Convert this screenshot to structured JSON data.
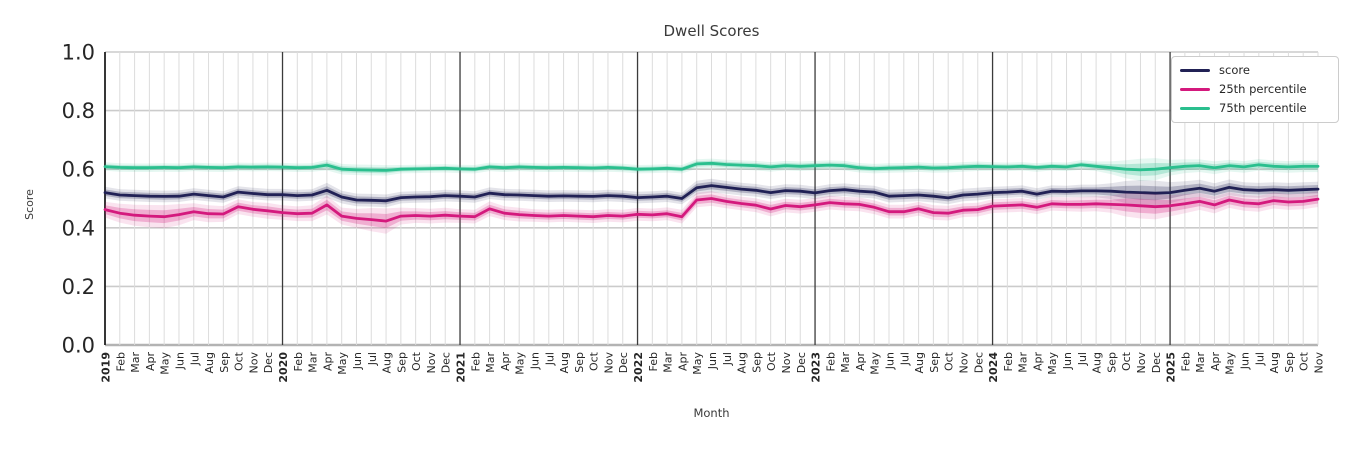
{
  "title": "Dwell Scores",
  "chart_data": {
    "type": "line",
    "title": "Dwell Scores",
    "xlabel": "Month",
    "ylabel": "Score",
    "ylim": [
      0.0,
      1.0
    ],
    "yticks": [
      0.0,
      0.2,
      0.4,
      0.6,
      0.8,
      1.0
    ],
    "grid": true,
    "legend_position": "upper right",
    "year_start_indices": [
      0,
      12,
      24,
      36,
      48,
      60,
      72
    ],
    "x": [
      "2019",
      "Feb",
      "Mar",
      "Apr",
      "May",
      "Jun",
      "Jul",
      "Aug",
      "Sep",
      "Oct",
      "Nov",
      "Dec",
      "2020",
      "Feb",
      "Mar",
      "Apr",
      "May",
      "Jun",
      "Jul",
      "Aug",
      "Sep",
      "Oct",
      "Nov",
      "Dec",
      "2021",
      "Feb",
      "Mar",
      "Apr",
      "May",
      "Jun",
      "Jul",
      "Aug",
      "Sep",
      "Oct",
      "Nov",
      "Dec",
      "2022",
      "Feb",
      "Mar",
      "Apr",
      "May",
      "Jun",
      "Jul",
      "Aug",
      "Sep",
      "Oct",
      "Nov",
      "Dec",
      "2023",
      "Feb",
      "Mar",
      "Apr",
      "May",
      "Jun",
      "Jul",
      "Aug",
      "Sep",
      "Oct",
      "Nov",
      "Dec",
      "2024",
      "Feb",
      "Mar",
      "Apr",
      "May",
      "Jun",
      "Jul",
      "Aug",
      "Sep",
      "Oct",
      "Nov",
      "Dec",
      "2025",
      "Feb",
      "Mar",
      "Apr",
      "May",
      "Jun",
      "Jul",
      "Aug",
      "Sep",
      "Oct",
      "Nov"
    ],
    "series": [
      {
        "name": "score",
        "color": "#212155",
        "values": [
          0.52,
          0.512,
          0.51,
          0.508,
          0.507,
          0.508,
          0.515,
          0.51,
          0.505,
          0.522,
          0.517,
          0.513,
          0.513,
          0.51,
          0.512,
          0.528,
          0.505,
          0.495,
          0.494,
          0.492,
          0.503,
          0.505,
          0.506,
          0.51,
          0.508,
          0.505,
          0.518,
          0.513,
          0.512,
          0.51,
          0.508,
          0.509,
          0.508,
          0.507,
          0.51,
          0.508,
          0.503,
          0.505,
          0.508,
          0.5,
          0.537,
          0.544,
          0.538,
          0.532,
          0.528,
          0.52,
          0.527,
          0.525,
          0.519,
          0.527,
          0.53,
          0.525,
          0.522,
          0.508,
          0.51,
          0.512,
          0.508,
          0.502,
          0.512,
          0.515,
          0.52,
          0.522,
          0.525,
          0.515,
          0.525,
          0.524,
          0.526,
          0.526,
          0.525,
          0.522,
          0.52,
          0.518,
          0.52,
          0.528,
          0.535,
          0.525,
          0.538,
          0.53,
          0.528,
          0.53,
          0.528,
          0.53,
          0.532
        ],
        "band": [
          0.011,
          0.011,
          0.011,
          0.011,
          0.011,
          0.011,
          0.011,
          0.011,
          0.011,
          0.011,
          0.011,
          0.011,
          0.011,
          0.011,
          0.011,
          0.014,
          0.012,
          0.012,
          0.012,
          0.012,
          0.011,
          0.011,
          0.011,
          0.011,
          0.011,
          0.011,
          0.011,
          0.011,
          0.011,
          0.011,
          0.011,
          0.011,
          0.011,
          0.011,
          0.011,
          0.011,
          0.011,
          0.011,
          0.011,
          0.011,
          0.013,
          0.013,
          0.012,
          0.012,
          0.012,
          0.012,
          0.012,
          0.012,
          0.012,
          0.012,
          0.012,
          0.012,
          0.012,
          0.012,
          0.012,
          0.012,
          0.012,
          0.012,
          0.012,
          0.012,
          0.011,
          0.011,
          0.011,
          0.011,
          0.011,
          0.011,
          0.012,
          0.012,
          0.015,
          0.021,
          0.024,
          0.024,
          0.02,
          0.017,
          0.016,
          0.015,
          0.015,
          0.014,
          0.014,
          0.014,
          0.014,
          0.014,
          0.014
        ]
      },
      {
        "name": "25th percentile",
        "color": "#d4197d",
        "values": [
          0.462,
          0.45,
          0.443,
          0.44,
          0.438,
          0.445,
          0.455,
          0.448,
          0.447,
          0.472,
          0.463,
          0.458,
          0.452,
          0.448,
          0.45,
          0.478,
          0.44,
          0.432,
          0.428,
          0.423,
          0.44,
          0.442,
          0.44,
          0.443,
          0.44,
          0.438,
          0.465,
          0.45,
          0.445,
          0.442,
          0.44,
          0.442,
          0.44,
          0.438,
          0.442,
          0.44,
          0.446,
          0.444,
          0.448,
          0.438,
          0.495,
          0.5,
          0.49,
          0.483,
          0.477,
          0.464,
          0.476,
          0.472,
          0.478,
          0.486,
          0.482,
          0.48,
          0.47,
          0.455,
          0.455,
          0.465,
          0.452,
          0.45,
          0.46,
          0.462,
          0.474,
          0.476,
          0.478,
          0.47,
          0.482,
          0.48,
          0.48,
          0.482,
          0.48,
          0.478,
          0.475,
          0.472,
          0.475,
          0.482,
          0.49,
          0.478,
          0.495,
          0.485,
          0.482,
          0.493,
          0.488,
          0.49,
          0.498
        ],
        "band": [
          0.015,
          0.018,
          0.02,
          0.021,
          0.022,
          0.02,
          0.016,
          0.016,
          0.015,
          0.014,
          0.014,
          0.015,
          0.014,
          0.014,
          0.015,
          0.018,
          0.016,
          0.018,
          0.022,
          0.024,
          0.016,
          0.014,
          0.014,
          0.014,
          0.013,
          0.013,
          0.014,
          0.013,
          0.013,
          0.012,
          0.012,
          0.012,
          0.012,
          0.012,
          0.012,
          0.012,
          0.012,
          0.012,
          0.012,
          0.013,
          0.014,
          0.014,
          0.013,
          0.013,
          0.013,
          0.014,
          0.013,
          0.013,
          0.013,
          0.013,
          0.013,
          0.013,
          0.013,
          0.013,
          0.013,
          0.013,
          0.014,
          0.014,
          0.013,
          0.013,
          0.013,
          0.013,
          0.013,
          0.013,
          0.013,
          0.013,
          0.014,
          0.014,
          0.016,
          0.022,
          0.024,
          0.024,
          0.02,
          0.018,
          0.016,
          0.016,
          0.015,
          0.015,
          0.015,
          0.015,
          0.015,
          0.015,
          0.015
        ]
      },
      {
        "name": "75th percentile",
        "color": "#2abf8e",
        "values": [
          0.609,
          0.606,
          0.605,
          0.605,
          0.606,
          0.605,
          0.608,
          0.606,
          0.605,
          0.608,
          0.607,
          0.608,
          0.607,
          0.605,
          0.606,
          0.614,
          0.6,
          0.598,
          0.597,
          0.596,
          0.6,
          0.601,
          0.602,
          0.603,
          0.601,
          0.6,
          0.608,
          0.605,
          0.608,
          0.606,
          0.605,
          0.606,
          0.605,
          0.604,
          0.606,
          0.604,
          0.6,
          0.601,
          0.603,
          0.6,
          0.618,
          0.62,
          0.616,
          0.614,
          0.612,
          0.608,
          0.612,
          0.61,
          0.612,
          0.614,
          0.612,
          0.605,
          0.602,
          0.604,
          0.605,
          0.607,
          0.604,
          0.605,
          0.608,
          0.61,
          0.609,
          0.608,
          0.61,
          0.606,
          0.61,
          0.608,
          0.615,
          0.61,
          0.605,
          0.6,
          0.598,
          0.6,
          0.605,
          0.61,
          0.612,
          0.605,
          0.612,
          0.608,
          0.615,
          0.61,
          0.608,
          0.61,
          0.61
        ],
        "band": [
          0.008,
          0.008,
          0.008,
          0.008,
          0.008,
          0.008,
          0.008,
          0.008,
          0.008,
          0.008,
          0.008,
          0.008,
          0.008,
          0.008,
          0.008,
          0.01,
          0.01,
          0.01,
          0.01,
          0.01,
          0.008,
          0.008,
          0.008,
          0.008,
          0.008,
          0.008,
          0.008,
          0.008,
          0.008,
          0.008,
          0.008,
          0.008,
          0.008,
          0.008,
          0.008,
          0.008,
          0.008,
          0.008,
          0.008,
          0.008,
          0.009,
          0.009,
          0.009,
          0.009,
          0.009,
          0.009,
          0.009,
          0.009,
          0.009,
          0.009,
          0.009,
          0.009,
          0.009,
          0.009,
          0.009,
          0.009,
          0.009,
          0.009,
          0.009,
          0.009,
          0.008,
          0.008,
          0.008,
          0.008,
          0.008,
          0.008,
          0.009,
          0.009,
          0.012,
          0.017,
          0.021,
          0.021,
          0.015,
          0.013,
          0.012,
          0.012,
          0.011,
          0.011,
          0.011,
          0.011,
          0.011,
          0.011,
          0.011
        ]
      }
    ]
  }
}
